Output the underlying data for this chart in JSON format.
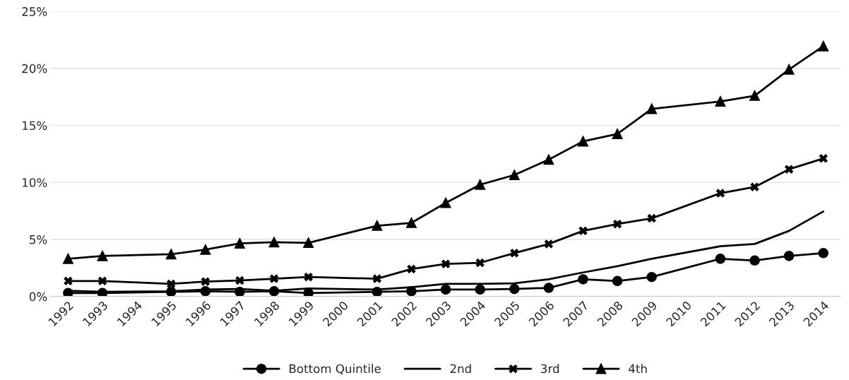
{
  "chart_data": {
    "type": "line",
    "categories": [
      "1992",
      "1993",
      "1994",
      "1995",
      "1996",
      "1997",
      "1998",
      "1999",
      "2000",
      "2001",
      "2002",
      "2003",
      "2004",
      "2005",
      "2006",
      "2007",
      "2008",
      "2009",
      "2010",
      "2011",
      "2012",
      "2013",
      "2014"
    ],
    "series": [
      {
        "name": "Bottom Quintile",
        "color": "#000000",
        "marker": "circle",
        "values": [
          0.3,
          0.3,
          null,
          0.4,
          0.45,
          0.4,
          0.45,
          0.3,
          null,
          0.4,
          0.45,
          0.6,
          0.6,
          0.65,
          0.75,
          1.5,
          1.35,
          1.7,
          null,
          3.3,
          3.15,
          3.55,
          3.8
        ]
      },
      {
        "name": "2nd",
        "color": "#000000",
        "marker": "none",
        "values": [
          0.5,
          0.4,
          null,
          0.45,
          0.6,
          0.65,
          0.5,
          0.7,
          null,
          0.6,
          0.8,
          1.1,
          1.1,
          1.15,
          1.5,
          2.1,
          2.65,
          3.3,
          null,
          4.4,
          4.6,
          5.75,
          7.45
        ]
      },
      {
        "name": "3rd",
        "color": "#000000",
        "marker": "cross",
        "values": [
          1.35,
          1.35,
          null,
          1.1,
          1.3,
          1.4,
          1.55,
          1.7,
          null,
          1.55,
          2.4,
          2.85,
          2.95,
          3.8,
          4.6,
          5.75,
          6.35,
          6.85,
          null,
          9.05,
          9.6,
          11.15,
          12.1
        ]
      },
      {
        "name": "4th",
        "color": "#000000",
        "marker": "triangle",
        "values": [
          3.3,
          3.55,
          null,
          3.7,
          4.1,
          4.65,
          4.75,
          4.7,
          null,
          6.2,
          6.45,
          8.2,
          9.8,
          10.65,
          12.0,
          13.6,
          14.25,
          16.45,
          null,
          17.1,
          17.6,
          19.9,
          21.95
        ]
      }
    ],
    "ylim": [
      0,
      25
    ],
    "yticks": [
      {
        "value": 0,
        "label": "0%"
      },
      {
        "value": 5,
        "label": "5%"
      },
      {
        "value": 10,
        "label": "10%"
      },
      {
        "value": 15,
        "label": "15%"
      },
      {
        "value": 20,
        "label": "20%"
      },
      {
        "value": 25,
        "label": "25%"
      }
    ],
    "grid": "y",
    "legend": "bottom",
    "line_style": "solid"
  }
}
